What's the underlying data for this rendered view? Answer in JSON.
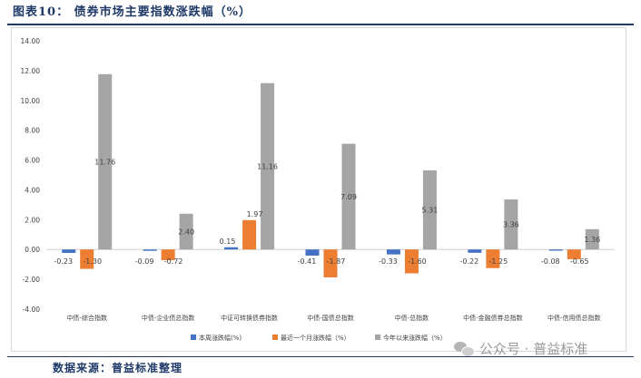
{
  "header": {
    "title": "图表10：   债券市场主要指数涨跌幅（%）"
  },
  "footer": {
    "source": "数据来源：普益标准整理"
  },
  "watermark": {
    "text": "公众号 · 普益标准",
    "icon": "wechat-icon"
  },
  "chart_data": {
    "type": "bar",
    "categories": [
      "中债-综合指数",
      "中债-企业债总指数",
      "中证可转换债券指数",
      "中债-国债总指数",
      "中债-总指数",
      "中债-金融债券总指数",
      "中债-信用债总指数"
    ],
    "series": [
      {
        "name": "本周涨跌幅(%)",
        "color": "#4472c4",
        "values": [
          -0.23,
          -0.09,
          0.15,
          -0.41,
          -0.33,
          -0.22,
          -0.08
        ],
        "labels": [
          "-0.23",
          "-0.09",
          "0.15",
          "-0.41",
          "-0.33",
          "-0.22",
          "-0.08"
        ]
      },
      {
        "name": "最近一个月涨跌幅（%）",
        "color": "#ed7d31",
        "values": [
          -1.3,
          -0.72,
          1.97,
          -1.87,
          -1.6,
          -1.25,
          -0.65
        ],
        "labels": [
          "-1.30",
          "-0.72",
          "1.97",
          "-1.87",
          "-1.60",
          "-1.25",
          "-0.65"
        ]
      },
      {
        "name": "今年以来涨跌幅（%）",
        "color": "#a5a5a5",
        "values": [
          11.76,
          2.4,
          11.16,
          7.09,
          5.31,
          3.36,
          1.36
        ],
        "labels": [
          "11.76",
          "2.40",
          "11.16",
          "7.09",
          "5.31",
          "3.36",
          "1.36"
        ]
      }
    ],
    "yticks": [
      "14.00",
      "12.00",
      "10.00",
      "8.00",
      "6.00",
      "4.00",
      "2.00",
      "0.00",
      "-2.00",
      "-4.00"
    ],
    "ylim": [
      -4,
      14
    ],
    "grid": false,
    "legend": "bottom"
  }
}
